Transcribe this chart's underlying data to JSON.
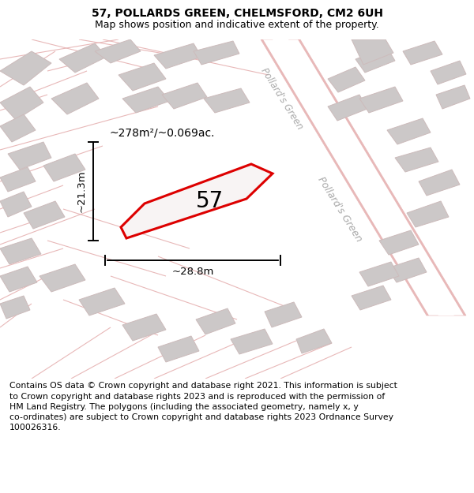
{
  "title": "57, POLLARDS GREEN, CHELMSFORD, CM2 6UH",
  "subtitle": "Map shows position and indicative extent of the property.",
  "footer": "Contains OS data © Crown copyright and database right 2021. This information is subject\nto Crown copyright and database rights 2023 and is reproduced with the permission of\nHM Land Registry. The polygons (including the associated geometry, namely x, y\nco-ordinates) are subject to Crown copyright and database rights 2023 Ordnance Survey\n100026316.",
  "map_bg": "#f2efef",
  "plot_color": "#dd0000",
  "plot_fill": "#f5f2f2",
  "building_fill": "#ccc8c8",
  "building_edge": "#ccbbbb",
  "road_fill": "#ffffff",
  "road_edge": "#e8b8b8",
  "road_line_color": "#e8b8b8",
  "label_57": "57",
  "area_label": "~278m²/~0.069ac.",
  "dim_h": "~21.3m",
  "dim_w": "~28.8m",
  "street_label": "Pollard's Green",
  "title_fontsize": 10,
  "subtitle_fontsize": 9,
  "footer_fontsize": 7.8,
  "label_fontsize": 20,
  "area_fontsize": 10,
  "dim_fontsize": 9.5,
  "street_fontsize": 8.5
}
